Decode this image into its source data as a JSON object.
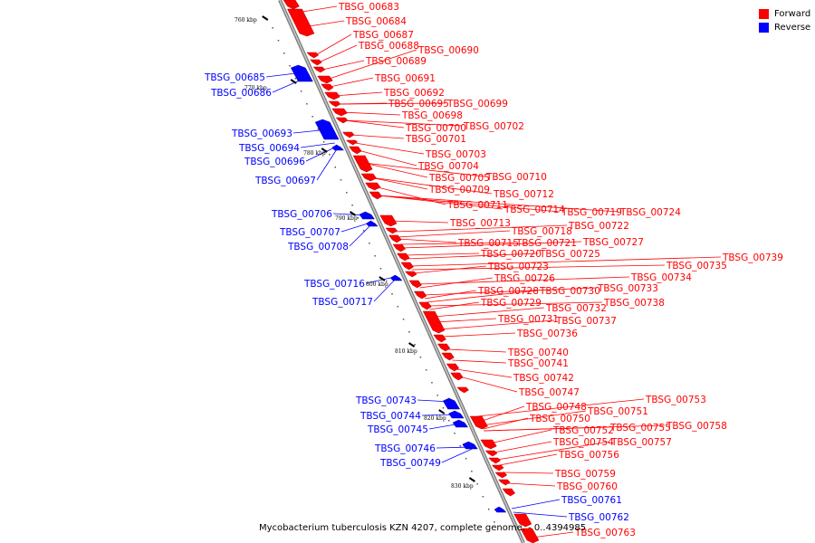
{
  "caption": "Mycobacterium tuberculosis KZN 4207, complete genome. - 0..4394985",
  "colors": {
    "forward": "#ff0000",
    "reverse": "#0000ff",
    "backbone": "#a0a0a0"
  },
  "legend": {
    "forward_label": "Forward",
    "reverse_label": "Reverse"
  },
  "ticks": [
    "760 kbp",
    "770 kbp",
    "780 kbp",
    "790 kbp",
    "800 kbp",
    "810 kbp",
    "820 kbp",
    "830 kbp"
  ],
  "forward_genes": [
    "TBSG_00683",
    "TBSG_00684",
    "TBSG_00687",
    "TBSG_00688",
    "TBSG_00689",
    "TBSG_00690",
    "TBSG_00691",
    "TBSG_00692",
    "TBSG_00695",
    "TBSG_00699",
    "TBSG_00698",
    "TBSG_00700",
    "TBSG_00702",
    "TBSG_00701",
    "TBSG_00703",
    "TBSG_00704",
    "TBSG_00705",
    "TBSG_00710",
    "TBSG_00709",
    "TBSG_00712",
    "TBSG_00711",
    "TBSG_00714",
    "TBSG_00719",
    "TBSG_00724",
    "TBSG_00713",
    "TBSG_00722",
    "TBSG_00718",
    "TBSG_00715",
    "TBSG_00721",
    "TBSG_00727",
    "TBSG_00720",
    "TBSG_00725",
    "TBSG_00739",
    "TBSG_00735",
    "TBSG_00723",
    "TBSG_00734",
    "TBSG_00726",
    "TBSG_00733",
    "TBSG_00728",
    "TBSG_00730",
    "TBSG_00738",
    "TBSG_00729",
    "TBSG_00732",
    "TBSG_00731",
    "TBSG_00737",
    "TBSG_00736",
    "TBSG_00740",
    "TBSG_00741",
    "TBSG_00742",
    "TBSG_00747",
    "TBSG_00753",
    "TBSG_00748",
    "TBSG_00751",
    "TBSG_00750",
    "TBSG_00755",
    "TBSG_00758",
    "TBSG_00752",
    "TBSG_00754",
    "TBSG_00757",
    "TBSG_00756",
    "TBSG_00759",
    "TBSG_00760",
    "TBSG_00763"
  ],
  "reverse_genes": [
    "TBSG_00685",
    "TBSG_00686",
    "TBSG_00693",
    "TBSG_00694",
    "TBSG_00696",
    "TBSG_00697",
    "TBSG_00706",
    "TBSG_00707",
    "TBSG_00708",
    "TBSG_00716",
    "TBSG_00717",
    "TBSG_00743",
    "TBSG_00744",
    "TBSG_00745",
    "TBSG_00746",
    "TBSG_00749",
    "TBSG_00761",
    "TBSG_00762"
  ]
}
